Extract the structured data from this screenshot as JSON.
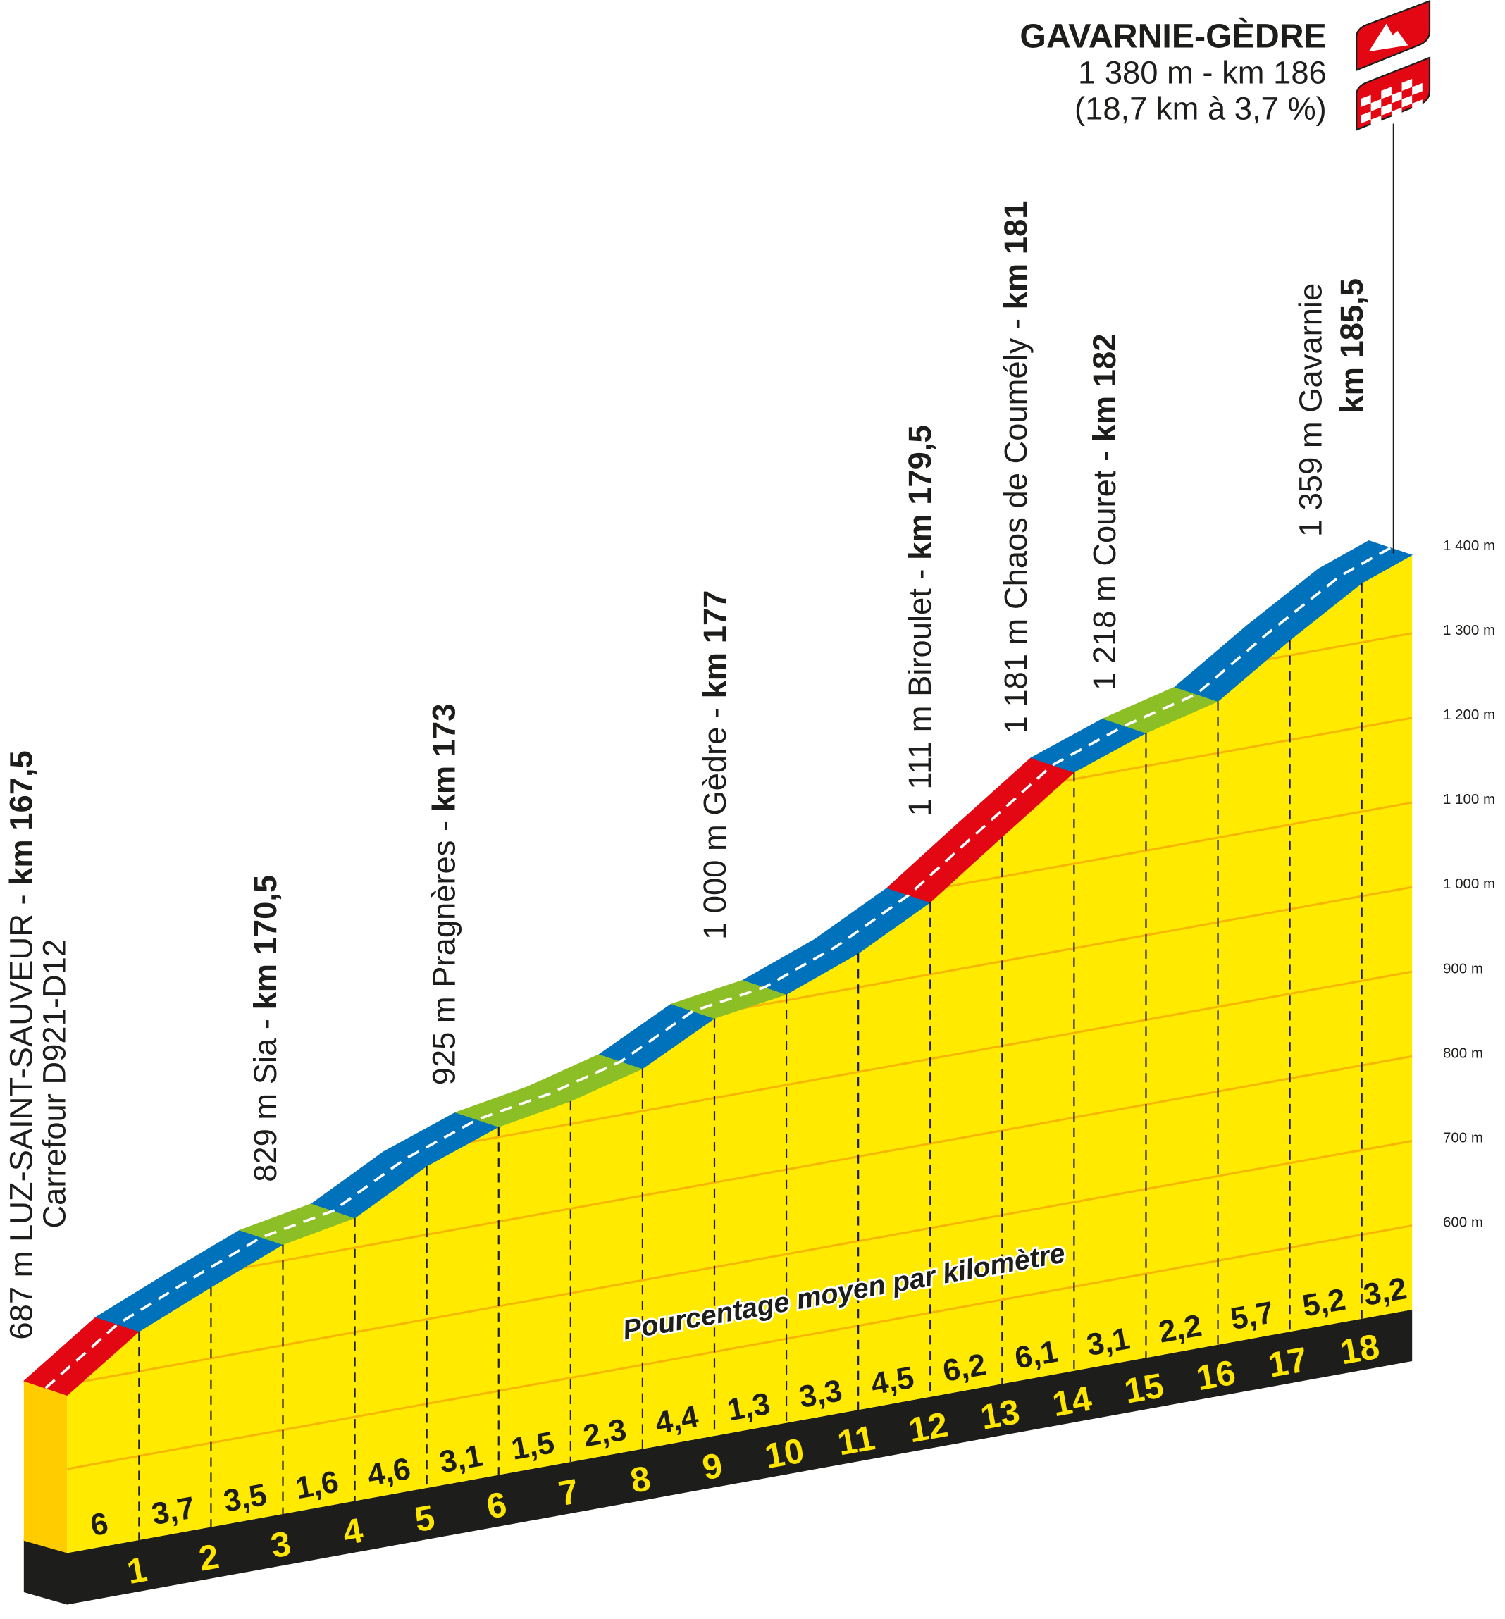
{
  "finish": {
    "name": "GAVARNIE-GÈDRE",
    "info": "1 380 m - km 186",
    "climb": "(18,7 km à 3,7 %)",
    "icons": [
      "mountain-flag-icon",
      "checkered-finish-flag-icon"
    ]
  },
  "places": [
    {
      "text": "687 m LUZ-SAINT-SAUVEUR - ",
      "km": "km 167,5",
      "line2": "Carrefour D921-D12"
    },
    {
      "text": "829 m Sia - ",
      "km": "km 170,5"
    },
    {
      "text": "925 m Pragnères - ",
      "km": "km 173"
    },
    {
      "text": "1 000 m Gèdre - ",
      "km": "km 177"
    },
    {
      "text": "1 111 m Biroulet - ",
      "km": "km 179,5"
    },
    {
      "text": "1 181 m Chaos de Coumély - ",
      "km": "km 181"
    },
    {
      "text": "1 218 m Couret - ",
      "km": "km 182"
    },
    {
      "text": "1 359 m Gavarnie",
      "km": "km 185,5"
    }
  ],
  "note": "Pourcentage moyen par kilomètre",
  "colors": {
    "steep": "#e30613",
    "medium": "#0072bc",
    "easy": "#8cbf26",
    "fill": "#ffea00",
    "base": "#1d1d1b",
    "grid": "#f7b500"
  },
  "chart_data": {
    "type": "area",
    "title": "GAVARNIE-GÈDRE",
    "xlabel": "",
    "ylabel": "",
    "start_elevation_m": 687,
    "total_km": 18.7,
    "km_labels": [
      "1",
      "2",
      "3",
      "4",
      "5",
      "6",
      "7",
      "8",
      "9",
      "10",
      "11",
      "12",
      "13",
      "14",
      "15",
      "16",
      "17",
      "18"
    ],
    "gradients_pct": [
      6,
      3.7,
      3.5,
      1.6,
      4.6,
      3.1,
      1.5,
      2.3,
      4.4,
      1.3,
      3.3,
      4.5,
      6.2,
      6.1,
      3.1,
      2.2,
      5.7,
      5.2,
      3.2
    ],
    "gradient_labels": [
      "6",
      "3,7",
      "3,5",
      "1,6",
      "4,6",
      "3,1",
      "1,5",
      "2,3",
      "4,4",
      "1,3",
      "3,3",
      "4,5",
      "6,2",
      "6,1",
      "3,1",
      "2,2",
      "5,7",
      "5,2",
      "3,2"
    ],
    "y_ticks": [
      600,
      700,
      800,
      900,
      1000,
      1100,
      1200,
      1300,
      1400
    ],
    "y_tick_labels": [
      "600 m",
      "700 m",
      "800 m",
      "900 m",
      "1 000 m",
      "1 100 m",
      "1 200 m",
      "1 300 m",
      "1 400 m"
    ],
    "color_thresholds_pct": {
      "red_min": 6,
      "blue_min": 3
    },
    "grid": true
  }
}
